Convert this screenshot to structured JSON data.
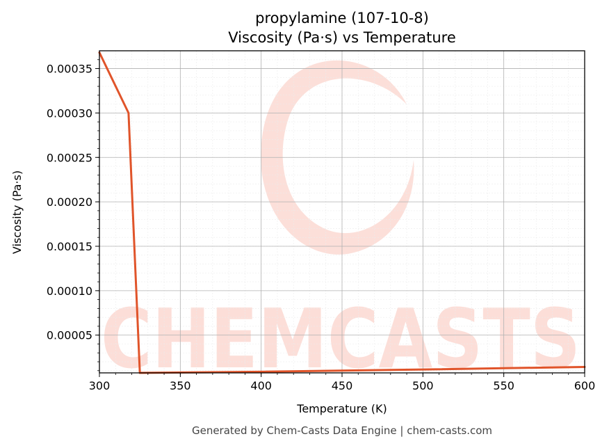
{
  "chart_data": {
    "type": "line",
    "title": "propylamine (107-10-8)",
    "subtitle": "Viscosity (Pa·s) vs Temperature",
    "xlabel": "Temperature (K)",
    "ylabel": "Viscosity (Pa·s)",
    "xlim": [
      300,
      600
    ],
    "ylim": [
      7.5e-06,
      0.00037
    ],
    "x_ticks": [
      300,
      350,
      400,
      450,
      500,
      550,
      600
    ],
    "x_tick_labels": [
      "300",
      "350",
      "400",
      "450",
      "500",
      "550",
      "600"
    ],
    "y_ticks": [
      5e-05,
      0.0001,
      0.00015,
      0.0002,
      0.00025,
      0.0003,
      0.00035
    ],
    "y_tick_labels": [
      "0.00005",
      "0.00010",
      "0.00015",
      "0.00020",
      "0.00025",
      "0.00030",
      "0.00035"
    ],
    "grid": true,
    "series": [
      {
        "color": "#e0542a",
        "x": [
          300,
          318,
          325,
          400,
          500,
          600
        ],
        "y": [
          0.000368,
          0.0003,
          7.5e-06,
          8.8e-06,
          1.13e-05,
          1.42e-05
        ]
      }
    ]
  },
  "watermark": {
    "text": "CHEMCASTS",
    "color": "#fcd9d2"
  },
  "footer": "Generated by Chem-Casts Data Engine | chem-casts.com"
}
